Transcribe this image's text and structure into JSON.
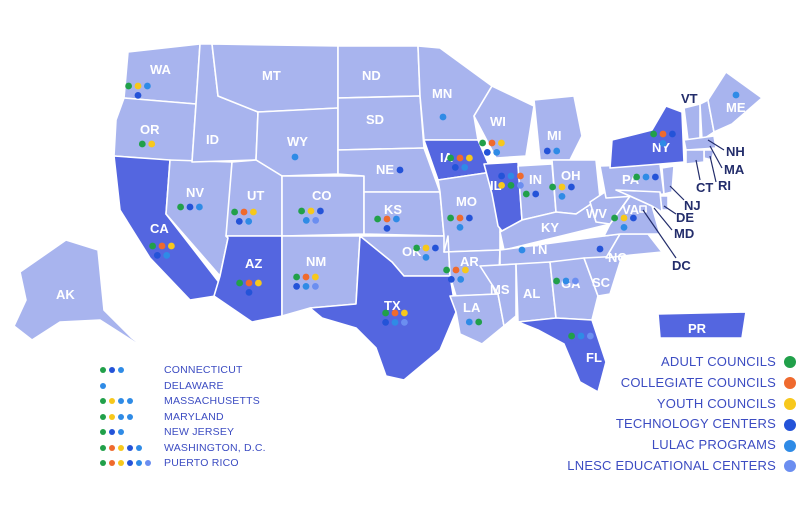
{
  "colors": {
    "state_light": "#a8b4ee",
    "state_highlight": "#5466e0",
    "text_dark": "#232d6b",
    "legend_text": "#3c4cc2",
    "adult": "#21a04a",
    "collegiate": "#ef6a2e",
    "youth": "#f7c81c",
    "technology": "#2453d8",
    "lulac": "#2f8be6",
    "lnesc": "#6b8ef0"
  },
  "program_types": [
    {
      "key": "adult",
      "label": "ADULT COUNCILS"
    },
    {
      "key": "collegiate",
      "label": "COLLEGIATE COUNCILS"
    },
    {
      "key": "youth",
      "label": "YOUTH COUNCILS"
    },
    {
      "key": "technology",
      "label": "TECHNOLOGY CENTERS"
    },
    {
      "key": "lulac",
      "label": "LULAC PROGRAMS"
    },
    {
      "key": "lnesc",
      "label": "LNESC EDUCATIONAL CENTERS"
    }
  ],
  "states": [
    {
      "abbr": "WA",
      "dots": [
        "adult",
        "youth",
        "lulac",
        "technology"
      ]
    },
    {
      "abbr": "OR",
      "dots": [
        "adult",
        "youth"
      ]
    },
    {
      "abbr": "CA",
      "highlight": true,
      "dots": [
        "adult",
        "collegiate",
        "youth",
        "technology",
        "lulac"
      ]
    },
    {
      "abbr": "NV",
      "dots": [
        "adult",
        "technology",
        "lulac"
      ]
    },
    {
      "abbr": "ID",
      "dots": []
    },
    {
      "abbr": "MT",
      "dots": []
    },
    {
      "abbr": "WY",
      "dots": [
        "lulac"
      ]
    },
    {
      "abbr": "UT",
      "dots": [
        "adult",
        "collegiate",
        "youth",
        "technology",
        "lulac"
      ]
    },
    {
      "abbr": "AZ",
      "highlight": true,
      "dots": [
        "adult",
        "collegiate",
        "youth",
        "technology"
      ]
    },
    {
      "abbr": "CO",
      "dots": [
        "adult",
        "youth",
        "technology",
        "lulac",
        "lnesc"
      ]
    },
    {
      "abbr": "NM",
      "dots": [
        "adult",
        "collegiate",
        "youth",
        "technology",
        "lulac",
        "lnesc"
      ]
    },
    {
      "abbr": "ND",
      "dots": []
    },
    {
      "abbr": "SD",
      "dots": []
    },
    {
      "abbr": "NE",
      "dots": [
        "technology"
      ]
    },
    {
      "abbr": "KS",
      "dots": [
        "adult",
        "collegiate",
        "lulac",
        "technology"
      ]
    },
    {
      "abbr": "OK",
      "dots": [
        "adult",
        "youth",
        "technology",
        "lulac"
      ]
    },
    {
      "abbr": "TX",
      "highlight": true,
      "dots": [
        "adult",
        "collegiate",
        "youth",
        "technology",
        "lulac",
        "lnesc"
      ]
    },
    {
      "abbr": "MN",
      "dots": [
        "lulac"
      ]
    },
    {
      "abbr": "IA",
      "highlight": true,
      "dots": [
        "adult",
        "collegiate",
        "youth",
        "technology",
        "lulac"
      ]
    },
    {
      "abbr": "MO",
      "dots": [
        "adult",
        "collegiate",
        "technology",
        "lulac"
      ]
    },
    {
      "abbr": "AR",
      "dots": [
        "adult",
        "collegiate",
        "youth",
        "technology",
        "lulac"
      ]
    },
    {
      "abbr": "LA",
      "dots": [
        "lulac",
        "adult"
      ]
    },
    {
      "abbr": "WI",
      "dots": [
        "adult",
        "collegiate",
        "youth",
        "technology",
        "lulac"
      ]
    },
    {
      "abbr": "IL",
      "highlight": true,
      "dots": [
        "technology",
        "lulac",
        "collegiate",
        "youth",
        "adult",
        "lnesc"
      ]
    },
    {
      "abbr": "MI",
      "dots": [
        "technology",
        "lulac"
      ]
    },
    {
      "abbr": "IN",
      "dots": [
        "adult",
        "technology"
      ]
    },
    {
      "abbr": "OH",
      "dots": [
        "adult",
        "youth",
        "technology",
        "lulac"
      ]
    },
    {
      "abbr": "KY",
      "dots": []
    },
    {
      "abbr": "TN",
      "dots": [
        "lulac"
      ]
    },
    {
      "abbr": "MS",
      "dots": []
    },
    {
      "abbr": "AL",
      "dots": []
    },
    {
      "abbr": "GA",
      "dots": [
        "adult",
        "lulac",
        "lnesc"
      ]
    },
    {
      "abbr": "FL",
      "highlight": true,
      "dots": [
        "adult",
        "lulac",
        "lnesc"
      ]
    },
    {
      "abbr": "SC",
      "dots": []
    },
    {
      "abbr": "NC",
      "dots": [
        "technology"
      ]
    },
    {
      "abbr": "VA",
      "dots": [
        "adult",
        "youth",
        "technology",
        "lulac"
      ]
    },
    {
      "abbr": "WV",
      "dots": []
    },
    {
      "abbr": "PA",
      "dots": [
        "adult",
        "lulac",
        "technology"
      ]
    },
    {
      "abbr": "NY",
      "highlight": true,
      "dots": [
        "adult",
        "collegiate",
        "technology",
        "lulac"
      ]
    },
    {
      "abbr": "VT",
      "dots": []
    },
    {
      "abbr": "NH",
      "dots": []
    },
    {
      "abbr": "ME",
      "dots": [
        "lulac"
      ]
    },
    {
      "abbr": "MA",
      "dots": []
    },
    {
      "abbr": "RI",
      "dots": []
    },
    {
      "abbr": "CT",
      "dots": []
    },
    {
      "abbr": "NJ",
      "dots": []
    },
    {
      "abbr": "DE",
      "dots": []
    },
    {
      "abbr": "MD",
      "dots": []
    },
    {
      "abbr": "DC",
      "dots": []
    },
    {
      "abbr": "AK",
      "dots": []
    },
    {
      "abbr": "PR",
      "highlight": true,
      "dots": []
    }
  ],
  "small_states": [
    {
      "name": "CONNECTICUT",
      "dots": [
        "adult",
        "technology",
        "lulac"
      ]
    },
    {
      "name": "DELAWARE",
      "dots": [
        "lulac"
      ]
    },
    {
      "name": "MASSACHUSETTS",
      "dots": [
        "adult",
        "youth",
        "lulac",
        "lulac"
      ]
    },
    {
      "name": "MARYLAND",
      "dots": [
        "adult",
        "youth",
        "lulac",
        "lulac"
      ]
    },
    {
      "name": "NEW JERSEY",
      "dots": [
        "adult",
        "technology",
        "lulac"
      ]
    },
    {
      "name": "WASHINGTON, D.C.",
      "dots": [
        "adult",
        "collegiate",
        "youth",
        "technology",
        "lulac"
      ]
    },
    {
      "name": "PUERTO RICO",
      "dots": [
        "adult",
        "collegiate",
        "youth",
        "technology",
        "lulac",
        "lnesc"
      ]
    }
  ]
}
